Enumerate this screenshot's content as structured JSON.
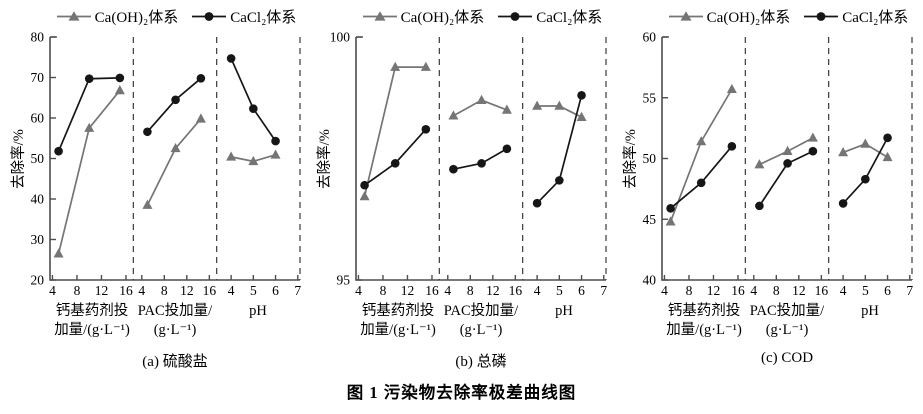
{
  "figure": {
    "caption": "图 1  污染物去除率极差曲线图"
  },
  "legend": {
    "series1_label": "Ca(OH)₂体系",
    "series2_label": "CaCl₂体系"
  },
  "colors": {
    "caoh2": "#757575",
    "cacl2": "#161616"
  },
  "chart_data": [
    {
      "type": "line",
      "subtitle": "(a) 硫酸盐",
      "ylabel": "去除率/%",
      "ylim": [
        20,
        80
      ],
      "yticks": [
        20,
        30,
        40,
        50,
        60,
        70,
        80
      ],
      "legend_position": "top",
      "grid": false,
      "panels": [
        {
          "xlabel": [
            "钙基药剂投",
            "加量/(g·L⁻¹)"
          ],
          "xlim": [
            3.6,
            17.2
          ],
          "xticks": [
            4,
            8,
            12,
            16
          ],
          "series": [
            {
              "name": "Ca(OH)₂体系",
              "system": "caoh2",
              "marker": "triangle",
              "x": [
                5,
                10,
                15
              ],
              "y": [
                26.5,
                57.5,
                66.8
              ]
            },
            {
              "name": "CaCl₂体系",
              "system": "cacl2",
              "marker": "circle",
              "x": [
                5,
                10,
                15
              ],
              "y": [
                51.8,
                69.7,
                69.9
              ]
            }
          ]
        },
        {
          "xlabel": [
            "PAC投加量/",
            "(g·L⁻¹)"
          ],
          "xlim": [
            2.5,
            17.3
          ],
          "xticks": [
            4,
            8,
            12,
            16
          ],
          "series": [
            {
              "name": "Ca(OH)₂体系",
              "system": "caoh2",
              "marker": "triangle",
              "x": [
                5,
                10,
                14.5
              ],
              "y": [
                38.5,
                52.5,
                59.8
              ]
            },
            {
              "name": "CaCl₂体系",
              "system": "cacl2",
              "marker": "circle",
              "x": [
                5,
                10,
                14.5
              ],
              "y": [
                56.6,
                64.5,
                69.8
              ]
            }
          ]
        },
        {
          "xlabel": [
            "pH"
          ],
          "xlim": [
            3.35,
            7.1
          ],
          "xticks": [
            4,
            5,
            6,
            7
          ],
          "series": [
            {
              "name": "Ca(OH)₂体系",
              "system": "caoh2",
              "marker": "triangle",
              "x": [
                4,
                5,
                6
              ],
              "y": [
                50.4,
                49.3,
                50.9
              ]
            },
            {
              "name": "CaCl₂体系",
              "system": "cacl2",
              "marker": "circle",
              "x": [
                4,
                5,
                6
              ],
              "y": [
                74.7,
                62.3,
                54.3
              ]
            }
          ]
        }
      ]
    },
    {
      "type": "line",
      "subtitle": "(b) 总磷",
      "ylabel": "去除率/%",
      "ylim": [
        95,
        100
      ],
      "yticks": [
        95,
        100
      ],
      "legend_position": "top",
      "grid": false,
      "panels": [
        {
          "xlabel": [
            "钙基药剂投",
            "加量/(g·L⁻¹)"
          ],
          "xlim": [
            3.6,
            17.2
          ],
          "xticks": [
            4,
            8,
            12,
            16
          ],
          "series": [
            {
              "name": "Ca(OH)₂体系",
              "system": "caoh2",
              "marker": "triangle",
              "x": [
                5,
                10,
                15
              ],
              "y": [
                96.72,
                99.38,
                99.38
              ]
            },
            {
              "name": "CaCl₂体系",
              "system": "cacl2",
              "marker": "circle",
              "x": [
                5,
                10,
                15
              ],
              "y": [
                96.95,
                97.4,
                98.1
              ]
            }
          ]
        },
        {
          "xlabel": [
            "PAC投加量/",
            "(g·L⁻¹)"
          ],
          "xlim": [
            2.5,
            17.3
          ],
          "xticks": [
            4,
            8,
            12,
            16
          ],
          "series": [
            {
              "name": "Ca(OH)₂体系",
              "system": "caoh2",
              "marker": "triangle",
              "x": [
                5,
                10,
                14.5
              ],
              "y": [
                98.38,
                98.7,
                98.5
              ]
            },
            {
              "name": "CaCl₂体系",
              "system": "cacl2",
              "marker": "circle",
              "x": [
                5,
                10,
                14.5
              ],
              "y": [
                97.28,
                97.4,
                97.7
              ]
            }
          ]
        },
        {
          "xlabel": [
            "pH"
          ],
          "xlim": [
            3.35,
            7.1
          ],
          "xticks": [
            4,
            5,
            6,
            7
          ],
          "series": [
            {
              "name": "Ca(OH)₂体系",
              "system": "caoh2",
              "marker": "triangle",
              "x": [
                4,
                5,
                6
              ],
              "y": [
                98.58,
                98.58,
                98.35
              ]
            },
            {
              "name": "CaCl₂体系",
              "system": "cacl2",
              "marker": "circle",
              "x": [
                4,
                5,
                6
              ],
              "y": [
                96.58,
                97.05,
                98.8
              ]
            }
          ]
        }
      ]
    },
    {
      "type": "line",
      "subtitle": "(c) COD",
      "ylabel": "去除率/%",
      "ylim": [
        40,
        60
      ],
      "yticks": [
        40,
        45,
        50,
        55,
        60
      ],
      "legend_position": "top",
      "grid": false,
      "panels": [
        {
          "xlabel": [
            "钙基药剂投",
            "加量/(g·L⁻¹)"
          ],
          "xlim": [
            3.6,
            17.2
          ],
          "xticks": [
            4,
            8,
            12,
            16
          ],
          "series": [
            {
              "name": "Ca(OH)₂体系",
              "system": "caoh2",
              "marker": "triangle",
              "x": [
                5,
                10,
                15
              ],
              "y": [
                44.8,
                51.4,
                55.7
              ]
            },
            {
              "name": "CaCl₂体系",
              "system": "cacl2",
              "marker": "circle",
              "x": [
                5,
                10,
                15
              ],
              "y": [
                45.9,
                48.0,
                51.0
              ]
            }
          ]
        },
        {
          "xlabel": [
            "PAC投加量/",
            "(g·L⁻¹)"
          ],
          "xlim": [
            2.5,
            17.3
          ],
          "xticks": [
            4,
            8,
            12,
            16
          ],
          "series": [
            {
              "name": "Ca(OH)₂体系",
              "system": "caoh2",
              "marker": "triangle",
              "x": [
                5,
                10,
                14.5
              ],
              "y": [
                49.5,
                50.6,
                51.7
              ]
            },
            {
              "name": "CaCl₂体系",
              "system": "cacl2",
              "marker": "circle",
              "x": [
                5,
                10,
                14.5
              ],
              "y": [
                46.1,
                49.6,
                50.6
              ]
            }
          ]
        },
        {
          "xlabel": [
            "pH"
          ],
          "xlim": [
            3.35,
            7.1
          ],
          "xticks": [
            4,
            5,
            6,
            7
          ],
          "series": [
            {
              "name": "Ca(OH)₂体系",
              "system": "caoh2",
              "marker": "triangle",
              "x": [
                4,
                5,
                6
              ],
              "y": [
                50.5,
                51.2,
                50.1
              ]
            },
            {
              "name": "CaCl₂体系",
              "system": "cacl2",
              "marker": "circle",
              "x": [
                4,
                5,
                6
              ],
              "y": [
                46.3,
                48.3,
                51.7
              ]
            }
          ]
        }
      ]
    }
  ]
}
